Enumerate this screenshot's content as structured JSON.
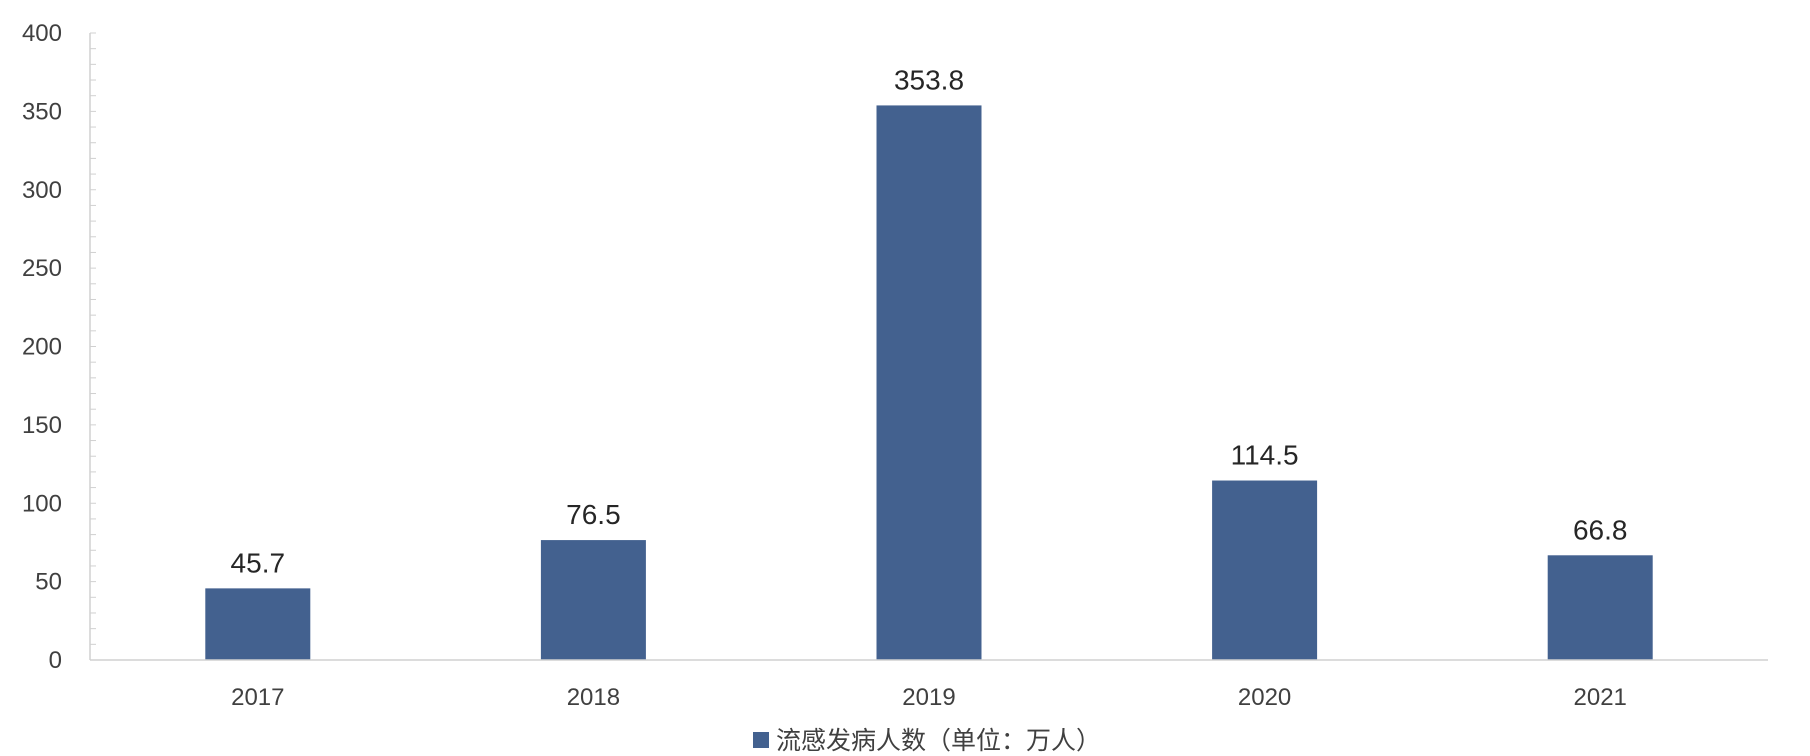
{
  "chart_data": {
    "type": "bar",
    "categories": [
      "2017",
      "2018",
      "2019",
      "2020",
      "2021"
    ],
    "series": [
      {
        "name": "流感发病人数（单位：万人）",
        "values": [
          45.7,
          76.5,
          353.8,
          114.5,
          66.8
        ],
        "data_labels": [
          "45.7",
          "76.5",
          "353.8",
          "114.5",
          "66.8"
        ],
        "color": "#43618f"
      }
    ],
    "yticks": [
      0,
      50,
      100,
      150,
      200,
      250,
      300,
      350,
      400
    ],
    "ylim": [
      0,
      400
    ],
    "grid": false,
    "legend_position": "bottom",
    "axis_color": "#d0d0d0"
  }
}
